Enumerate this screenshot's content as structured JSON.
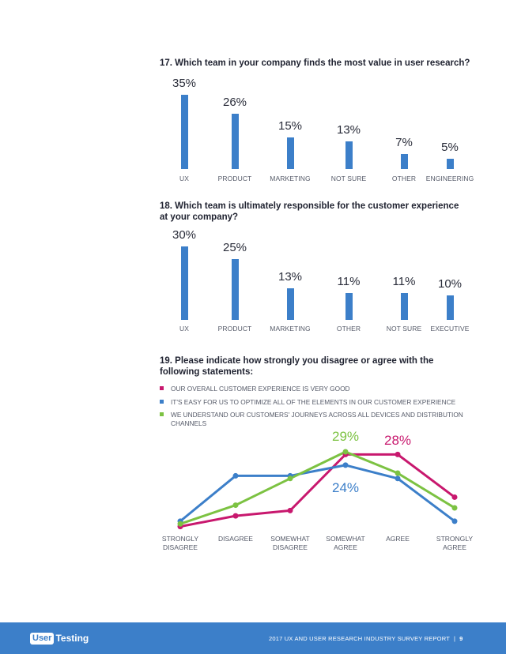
{
  "questions": {
    "q17": "17. Which team in your company finds the most value in user research?",
    "q18_line1": "18. Which team is ultimately responsible for the customer experience",
    "q18_line2": "at your company?",
    "q19_line1": "19. Please indicate how strongly you disagree or agree with the",
    "q19_line2": "following statements:"
  },
  "chart_data": [
    {
      "type": "bar",
      "title": "17. Which team in your company finds the most value in user research?",
      "categories": [
        "UX",
        "PRODUCT",
        "MARKETING",
        "NOT SURE",
        "OTHER",
        "ENGINEERING"
      ],
      "values": [
        35,
        26,
        15,
        13,
        7,
        5
      ],
      "value_labels": [
        "35%",
        "26%",
        "15%",
        "13%",
        "7%",
        "5%"
      ],
      "ylim": [
        0,
        35
      ]
    },
    {
      "type": "bar",
      "title": "18. Which team is ultimately responsible for the customer experience at your company?",
      "categories": [
        "UX",
        "PRODUCT",
        "MARKETING",
        "OTHER",
        "NOT SURE",
        "EXECUTIVE"
      ],
      "values": [
        30,
        25,
        13,
        11,
        11,
        10
      ],
      "value_labels": [
        "30%",
        "25%",
        "13%",
        "11%",
        "11%",
        "10%"
      ],
      "ylim": [
        0,
        30
      ]
    },
    {
      "type": "line",
      "title": "19. Please indicate how strongly you disagree or agree with the following statements:",
      "categories": [
        [
          "STRONGLY",
          "DISAGREE"
        ],
        [
          "DISAGREE",
          ""
        ],
        [
          "SOMEWHAT",
          "DISAGREE"
        ],
        [
          "SOMEWHAT",
          "AGREE"
        ],
        [
          "AGREE",
          ""
        ],
        [
          "STRONGLY",
          "AGREE"
        ]
      ],
      "series": [
        {
          "name": "OUR OVERALL CUSTOMER EXPERIENCE IS VERY GOOD",
          "color": "#c8186e",
          "values": [
            1,
            5,
            7,
            28,
            28,
            12
          ]
        },
        {
          "name": "IT'S EASY FOR US TO OPTIMIZE ALL OF THE ELEMENTS IN OUR CUSTOMER EXPERIENCE",
          "color": "#3c7fc9",
          "values": [
            3,
            20,
            20,
            24,
            19,
            3
          ]
        },
        {
          "name": "WE UNDERSTAND OUR CUSTOMERS' JOURNEYS ACROSS ALL DEVICES AND DISTRIBUTION CHANNELS",
          "color": "#7cc242",
          "values": [
            2,
            9,
            19,
            29,
            21,
            8
          ]
        }
      ],
      "annotations": [
        {
          "text": "29%",
          "series": 2,
          "color": "#7cc242"
        },
        {
          "text": "28%",
          "series": 0,
          "color": "#c8186e"
        },
        {
          "text": "24%",
          "series": 1,
          "color": "#3c7fc9"
        }
      ],
      "ylim": [
        0,
        29
      ]
    }
  ],
  "legend": {
    "item1": "OUR OVERALL CUSTOMER EXPERIENCE IS VERY GOOD",
    "item2": "IT'S EASY FOR US TO OPTIMIZE ALL OF THE ELEMENTS IN OUR CUSTOMER EXPERIENCE",
    "item3_line1": "WE UNDERSTAND OUR CUSTOMERS' JOURNEYS ACROSS ALL DEVICES AND DISTRIBUTION",
    "item3_line2": "CHANNELS"
  },
  "colors": {
    "blue": "#3c7fc9",
    "magenta": "#c8186e",
    "green": "#7cc242"
  },
  "footer": {
    "logo_user": "User",
    "logo_testing": "Testing",
    "report_title": "2017 UX AND USER RESEARCH INDUSTRY SURVEY REPORT",
    "separator": "|",
    "page_number": "9"
  }
}
